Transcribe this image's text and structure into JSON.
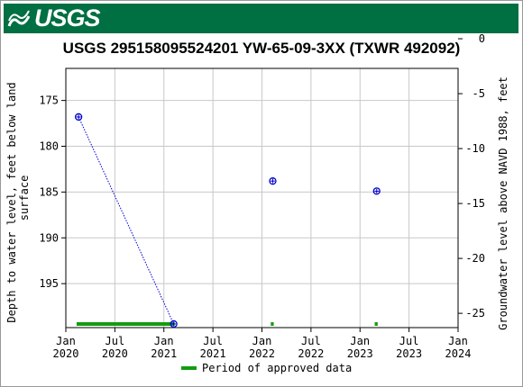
{
  "banner": {
    "agency": "USGS",
    "color": "#006F41"
  },
  "chart_data": {
    "type": "scatter",
    "title": "USGS 295158095524201 YW-65-09-3XX (TXWR 492092)",
    "ylabel_left_line1": "Depth to water level, feet below land",
    "ylabel_left_line2": "surface",
    "ylabel_right": "Groundwater level above NAVD 1988, feet",
    "x_tick_labels": [
      {
        "t": 2020.0,
        "line1": "Jan",
        "line2": "2020"
      },
      {
        "t": 2020.5,
        "line1": "Jul",
        "line2": "2020"
      },
      {
        "t": 2021.0,
        "line1": "Jan",
        "line2": "2021"
      },
      {
        "t": 2021.5,
        "line1": "Jul",
        "line2": "2021"
      },
      {
        "t": 2022.0,
        "line1": "Jan",
        "line2": "2022"
      },
      {
        "t": 2022.5,
        "line1": "Jul",
        "line2": "2022"
      },
      {
        "t": 2023.0,
        "line1": "Jan",
        "line2": "2023"
      },
      {
        "t": 2023.5,
        "line1": "Jul",
        "line2": "2023"
      },
      {
        "t": 2024.0,
        "line1": "Jan",
        "line2": "2024"
      }
    ],
    "xlim": [
      2020.0,
      2024.0
    ],
    "ylim_left": [
      171.5,
      199.8
    ],
    "yticks_left": [
      175,
      180,
      185,
      190,
      195
    ],
    "ylim_right": [
      -2.7,
      -26.3
    ],
    "yticks_right": [
      0,
      -5,
      -10,
      -15,
      -20,
      -25
    ],
    "points": [
      {
        "x": 2020.13,
        "y": 176.8
      },
      {
        "x": 2021.1,
        "y": 199.4
      },
      {
        "x": 2022.11,
        "y": 183.8
      },
      {
        "x": 2023.17,
        "y": 184.9
      }
    ],
    "connected_segments": [
      [
        0,
        1
      ]
    ],
    "approved_periods": [
      {
        "start": 2020.11,
        "end": 2021.11
      },
      {
        "start": 2022.09,
        "end": 2022.12
      },
      {
        "start": 2023.15,
        "end": 2023.18
      }
    ],
    "legend": {
      "label": "Period of approved data",
      "position": "bottom"
    },
    "grid": true,
    "colors": {
      "points": "#0000CC",
      "approved": "#109D10",
      "grid": "#C8C8C8"
    }
  }
}
